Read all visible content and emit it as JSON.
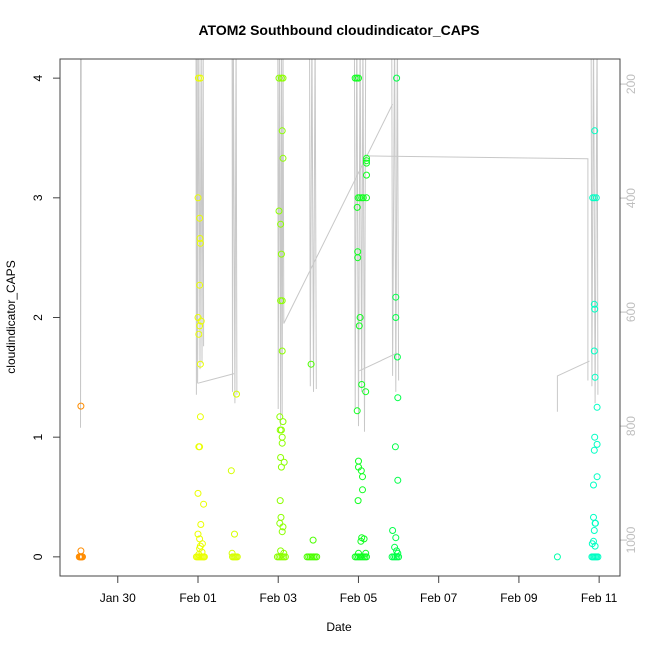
{
  "chart_data": {
    "type": "scatter",
    "title": "ATOM2 Southbound cloudindicator_CAPS",
    "xlabel": "Date",
    "ylabel": "cloudindicator_CAPS",
    "xlim_days_from_jan30": [
      -1.44,
      12.52
    ],
    "ylim": [
      -0.16,
      4.16
    ],
    "x_ticks": [
      {
        "day": 0,
        "label": "Jan 30"
      },
      {
        "day": 2,
        "label": "Feb 01"
      },
      {
        "day": 4,
        "label": "Feb 03"
      },
      {
        "day": 6,
        "label": "Feb 05"
      },
      {
        "day": 8,
        "label": "Feb 07"
      },
      {
        "day": 10,
        "label": "Feb 09"
      },
      {
        "day": 12,
        "label": "Feb 11"
      }
    ],
    "y_ticks": [
      0,
      1,
      2,
      3,
      4
    ],
    "right_axis": {
      "label_color": "#bebebe",
      "range_inverted": [
        156,
        1063
      ],
      "ticks": [
        200,
        400,
        600,
        800,
        1000
      ]
    },
    "depth_line_color": "#c8c8c8",
    "depth_paths": [
      [
        [
          -0.93,
          100
        ],
        [
          -0.93,
          803
        ],
        [
          -0.91,
          100
        ]
      ],
      [
        [
          1.95,
          100
        ],
        [
          1.96,
          745
        ],
        [
          1.98,
          100
        ],
        [
          1.99,
          725
        ],
        [
          2.02,
          100
        ],
        [
          2.05,
          700
        ],
        [
          2.08,
          100
        ],
        [
          2.1,
          690
        ],
        [
          2.13,
          100
        ],
        [
          2.14,
          660
        ]
      ],
      [
        [
          1.99,
          725
        ],
        [
          2.9,
          708
        ]
      ],
      [
        [
          2.85,
          100
        ],
        [
          2.86,
          740
        ],
        [
          2.88,
          100
        ],
        [
          2.92,
          760
        ],
        [
          2.95,
          100
        ],
        [
          2.97,
          745
        ]
      ],
      [
        [
          3.99,
          100
        ],
        [
          4.0,
          770
        ],
        [
          4.03,
          100
        ],
        [
          4.06,
          800
        ],
        [
          4.08,
          100
        ],
        [
          4.1,
          780
        ],
        [
          4.12,
          100
        ],
        [
          4.14,
          620
        ],
        [
          6.85,
          235
        ]
      ],
      [
        [
          4.78,
          100
        ],
        [
          4.8,
          730
        ],
        [
          4.84,
          100
        ],
        [
          4.88,
          740
        ],
        [
          4.92,
          100
        ],
        [
          4.95,
          735
        ]
      ],
      [
        [
          5.9,
          100
        ],
        [
          5.92,
          770
        ],
        [
          5.96,
          100
        ],
        [
          6.0,
          800
        ],
        [
          6.04,
          100
        ],
        [
          6.08,
          740
        ],
        [
          6.11,
          100
        ],
        [
          6.15,
          810
        ],
        [
          6.18,
          100
        ]
      ],
      [
        [
          6.02,
          703
        ],
        [
          6.96,
          672
        ]
      ],
      [
        [
          6.83,
          100
        ],
        [
          6.85,
          712
        ],
        [
          6.9,
          100
        ],
        [
          6.93,
          740
        ],
        [
          6.97,
          100
        ],
        [
          7.0,
          720
        ]
      ],
      [
        [
          6.2,
          326
        ],
        [
          11.72,
          331
        ],
        [
          11.72,
          720
        ]
      ],
      [
        [
          10.96,
          775
        ],
        [
          10.96,
          712
        ],
        [
          11.76,
          686
        ]
      ],
      [
        [
          11.8,
          100
        ],
        [
          11.82,
          730
        ],
        [
          11.86,
          100
        ],
        [
          11.9,
          760
        ],
        [
          11.95,
          100
        ],
        [
          11.97,
          745
        ]
      ]
    ],
    "groups": [
      {
        "color": "#ff8c00",
        "points": [
          [
            -0.92,
            1.26
          ],
          [
            -0.92,
            0.05
          ],
          [
            -0.96,
            0
          ],
          [
            -0.94,
            0
          ],
          [
            -0.92,
            0
          ],
          [
            -0.9,
            0
          ],
          [
            -0.88,
            0
          ]
        ]
      },
      {
        "color": "#eaff00",
        "points": [
          [
            2.01,
            4.0
          ],
          [
            2.06,
            4.0
          ],
          [
            2.0,
            3.0
          ],
          [
            2.04,
            2.83
          ],
          [
            2.05,
            2.66
          ],
          [
            2.06,
            2.62
          ],
          [
            2.04,
            2.27
          ],
          [
            2.0,
            2.0
          ],
          [
            2.08,
            1.97
          ],
          [
            2.04,
            1.93
          ],
          [
            2.02,
            1.86
          ],
          [
            2.06,
            1.61
          ],
          [
            2.06,
            1.17
          ],
          [
            2.02,
            0.92
          ],
          [
            2.04,
            0.92
          ],
          [
            2.0,
            0.53
          ],
          [
            2.14,
            0.44
          ],
          [
            2.07,
            0.27
          ],
          [
            2.0,
            0.19
          ],
          [
            2.04,
            0.15
          ],
          [
            2.11,
            0.11
          ],
          [
            2.06,
            0.09
          ],
          [
            2.04,
            0.07
          ],
          [
            2.1,
            0.04
          ],
          [
            2.02,
            0.02
          ],
          [
            1.96,
            0
          ],
          [
            1.99,
            0
          ],
          [
            2.02,
            0
          ],
          [
            2.05,
            0
          ],
          [
            2.08,
            0
          ],
          [
            2.11,
            0
          ],
          [
            2.14,
            0
          ],
          [
            2.16,
            0
          ]
        ]
      },
      {
        "color": "#d6ff00",
        "points": [
          [
            2.83,
            0.72
          ],
          [
            2.96,
            1.36
          ],
          [
            2.91,
            0.19
          ],
          [
            2.85,
            0.03
          ],
          [
            2.86,
            0
          ],
          [
            2.89,
            0
          ],
          [
            2.92,
            0
          ],
          [
            2.95,
            0
          ],
          [
            2.98,
            0
          ]
        ]
      },
      {
        "color": "#8cff00",
        "points": [
          [
            4.02,
            4.0
          ],
          [
            4.08,
            4.0
          ],
          [
            4.12,
            4.0
          ],
          [
            4.1,
            3.56
          ],
          [
            4.12,
            3.33
          ],
          [
            4.02,
            2.89
          ],
          [
            4.06,
            2.78
          ],
          [
            4.08,
            2.53
          ],
          [
            4.06,
            2.14
          ],
          [
            4.1,
            2.14
          ],
          [
            4.1,
            1.72
          ],
          [
            4.04,
            1.17
          ],
          [
            4.12,
            1.13
          ],
          [
            4.05,
            1.06
          ],
          [
            4.08,
            1.06
          ],
          [
            4.1,
            1.0
          ],
          [
            4.1,
            0.95
          ],
          [
            4.06,
            0.83
          ],
          [
            4.15,
            0.79
          ],
          [
            4.08,
            0.75
          ],
          [
            4.05,
            0.47
          ],
          [
            4.07,
            0.33
          ],
          [
            4.04,
            0.28
          ],
          [
            4.12,
            0.25
          ],
          [
            4.1,
            0.21
          ],
          [
            4.06,
            0.05
          ],
          [
            4.14,
            0.03
          ],
          [
            3.98,
            0
          ],
          [
            4.02,
            0
          ],
          [
            4.06,
            0
          ],
          [
            4.1,
            0
          ],
          [
            4.14,
            0
          ],
          [
            4.18,
            0
          ]
        ]
      },
      {
        "color": "#4cff00",
        "points": [
          [
            4.82,
            1.61
          ],
          [
            4.87,
            0.14
          ],
          [
            4.72,
            0
          ],
          [
            4.76,
            0
          ],
          [
            4.8,
            0
          ],
          [
            4.84,
            0
          ],
          [
            4.88,
            0
          ],
          [
            4.92,
            0
          ],
          [
            4.96,
            0
          ]
        ]
      },
      {
        "color": "#10ff20",
        "points": [
          [
            5.92,
            4.0
          ],
          [
            5.96,
            4.0
          ],
          [
            6.0,
            4.0
          ],
          [
            6.2,
            3.33
          ],
          [
            6.2,
            3.31
          ],
          [
            6.2,
            3.29
          ],
          [
            6.2,
            3.19
          ],
          [
            5.99,
            3.0
          ],
          [
            6.03,
            3.0
          ],
          [
            6.08,
            3.0
          ],
          [
            6.12,
            3.0
          ],
          [
            6.2,
            3.0
          ],
          [
            5.97,
            2.92
          ],
          [
            5.98,
            2.55
          ],
          [
            5.98,
            2.5
          ],
          [
            6.04,
            2.0
          ],
          [
            6.02,
            1.93
          ],
          [
            6.08,
            1.44
          ],
          [
            6.18,
            1.38
          ],
          [
            5.97,
            1.22
          ],
          [
            6.0,
            0.8
          ],
          [
            6.0,
            0.75
          ],
          [
            6.07,
            0.72
          ],
          [
            6.1,
            0.67
          ],
          [
            6.1,
            0.56
          ],
          [
            5.99,
            0.47
          ],
          [
            6.08,
            0.16
          ],
          [
            6.14,
            0.15
          ],
          [
            6.06,
            0.13
          ],
          [
            6.0,
            0.03
          ],
          [
            6.18,
            0.03
          ],
          [
            5.92,
            0
          ],
          [
            5.96,
            0
          ],
          [
            6.0,
            0
          ],
          [
            6.04,
            0
          ],
          [
            6.08,
            0
          ],
          [
            6.12,
            0
          ],
          [
            6.16,
            0
          ],
          [
            6.2,
            0
          ]
        ]
      },
      {
        "color": "#00ff48",
        "points": [
          [
            6.95,
            4.0
          ],
          [
            6.93,
            2.17
          ],
          [
            6.93,
            2.0
          ],
          [
            6.97,
            1.67
          ],
          [
            6.98,
            1.33
          ],
          [
            6.92,
            0.92
          ],
          [
            6.98,
            0.64
          ],
          [
            6.85,
            0.22
          ],
          [
            6.93,
            0.16
          ],
          [
            6.9,
            0.08
          ],
          [
            6.95,
            0.05
          ],
          [
            6.98,
            0.03
          ],
          [
            6.84,
            0
          ],
          [
            6.88,
            0
          ],
          [
            6.92,
            0
          ],
          [
            6.96,
            0
          ],
          [
            7.0,
            0
          ]
        ]
      },
      {
        "color": "#00ffaa",
        "points": [
          [
            10.96,
            0
          ]
        ]
      },
      {
        "color": "#00ffc4",
        "points": [
          [
            11.89,
            3.56
          ],
          [
            11.84,
            3.0
          ],
          [
            11.88,
            3.0
          ],
          [
            11.93,
            3.0
          ],
          [
            11.88,
            2.11
          ],
          [
            11.89,
            2.07
          ],
          [
            11.88,
            1.72
          ],
          [
            11.9,
            1.5
          ],
          [
            11.95,
            1.25
          ],
          [
            11.89,
            1.0
          ],
          [
            11.95,
            0.94
          ],
          [
            11.88,
            0.89
          ],
          [
            11.95,
            0.67
          ],
          [
            11.86,
            0.6
          ],
          [
            11.86,
            0.33
          ],
          [
            11.9,
            0.28
          ],
          [
            11.91,
            0.28
          ],
          [
            11.88,
            0.22
          ],
          [
            11.86,
            0.13
          ],
          [
            11.83,
            0.11
          ],
          [
            11.9,
            0.09
          ],
          [
            11.82,
            0
          ],
          [
            11.85,
            0
          ],
          [
            11.88,
            0
          ],
          [
            11.91,
            0
          ],
          [
            11.94,
            0
          ],
          [
            11.97,
            0
          ]
        ]
      }
    ]
  }
}
